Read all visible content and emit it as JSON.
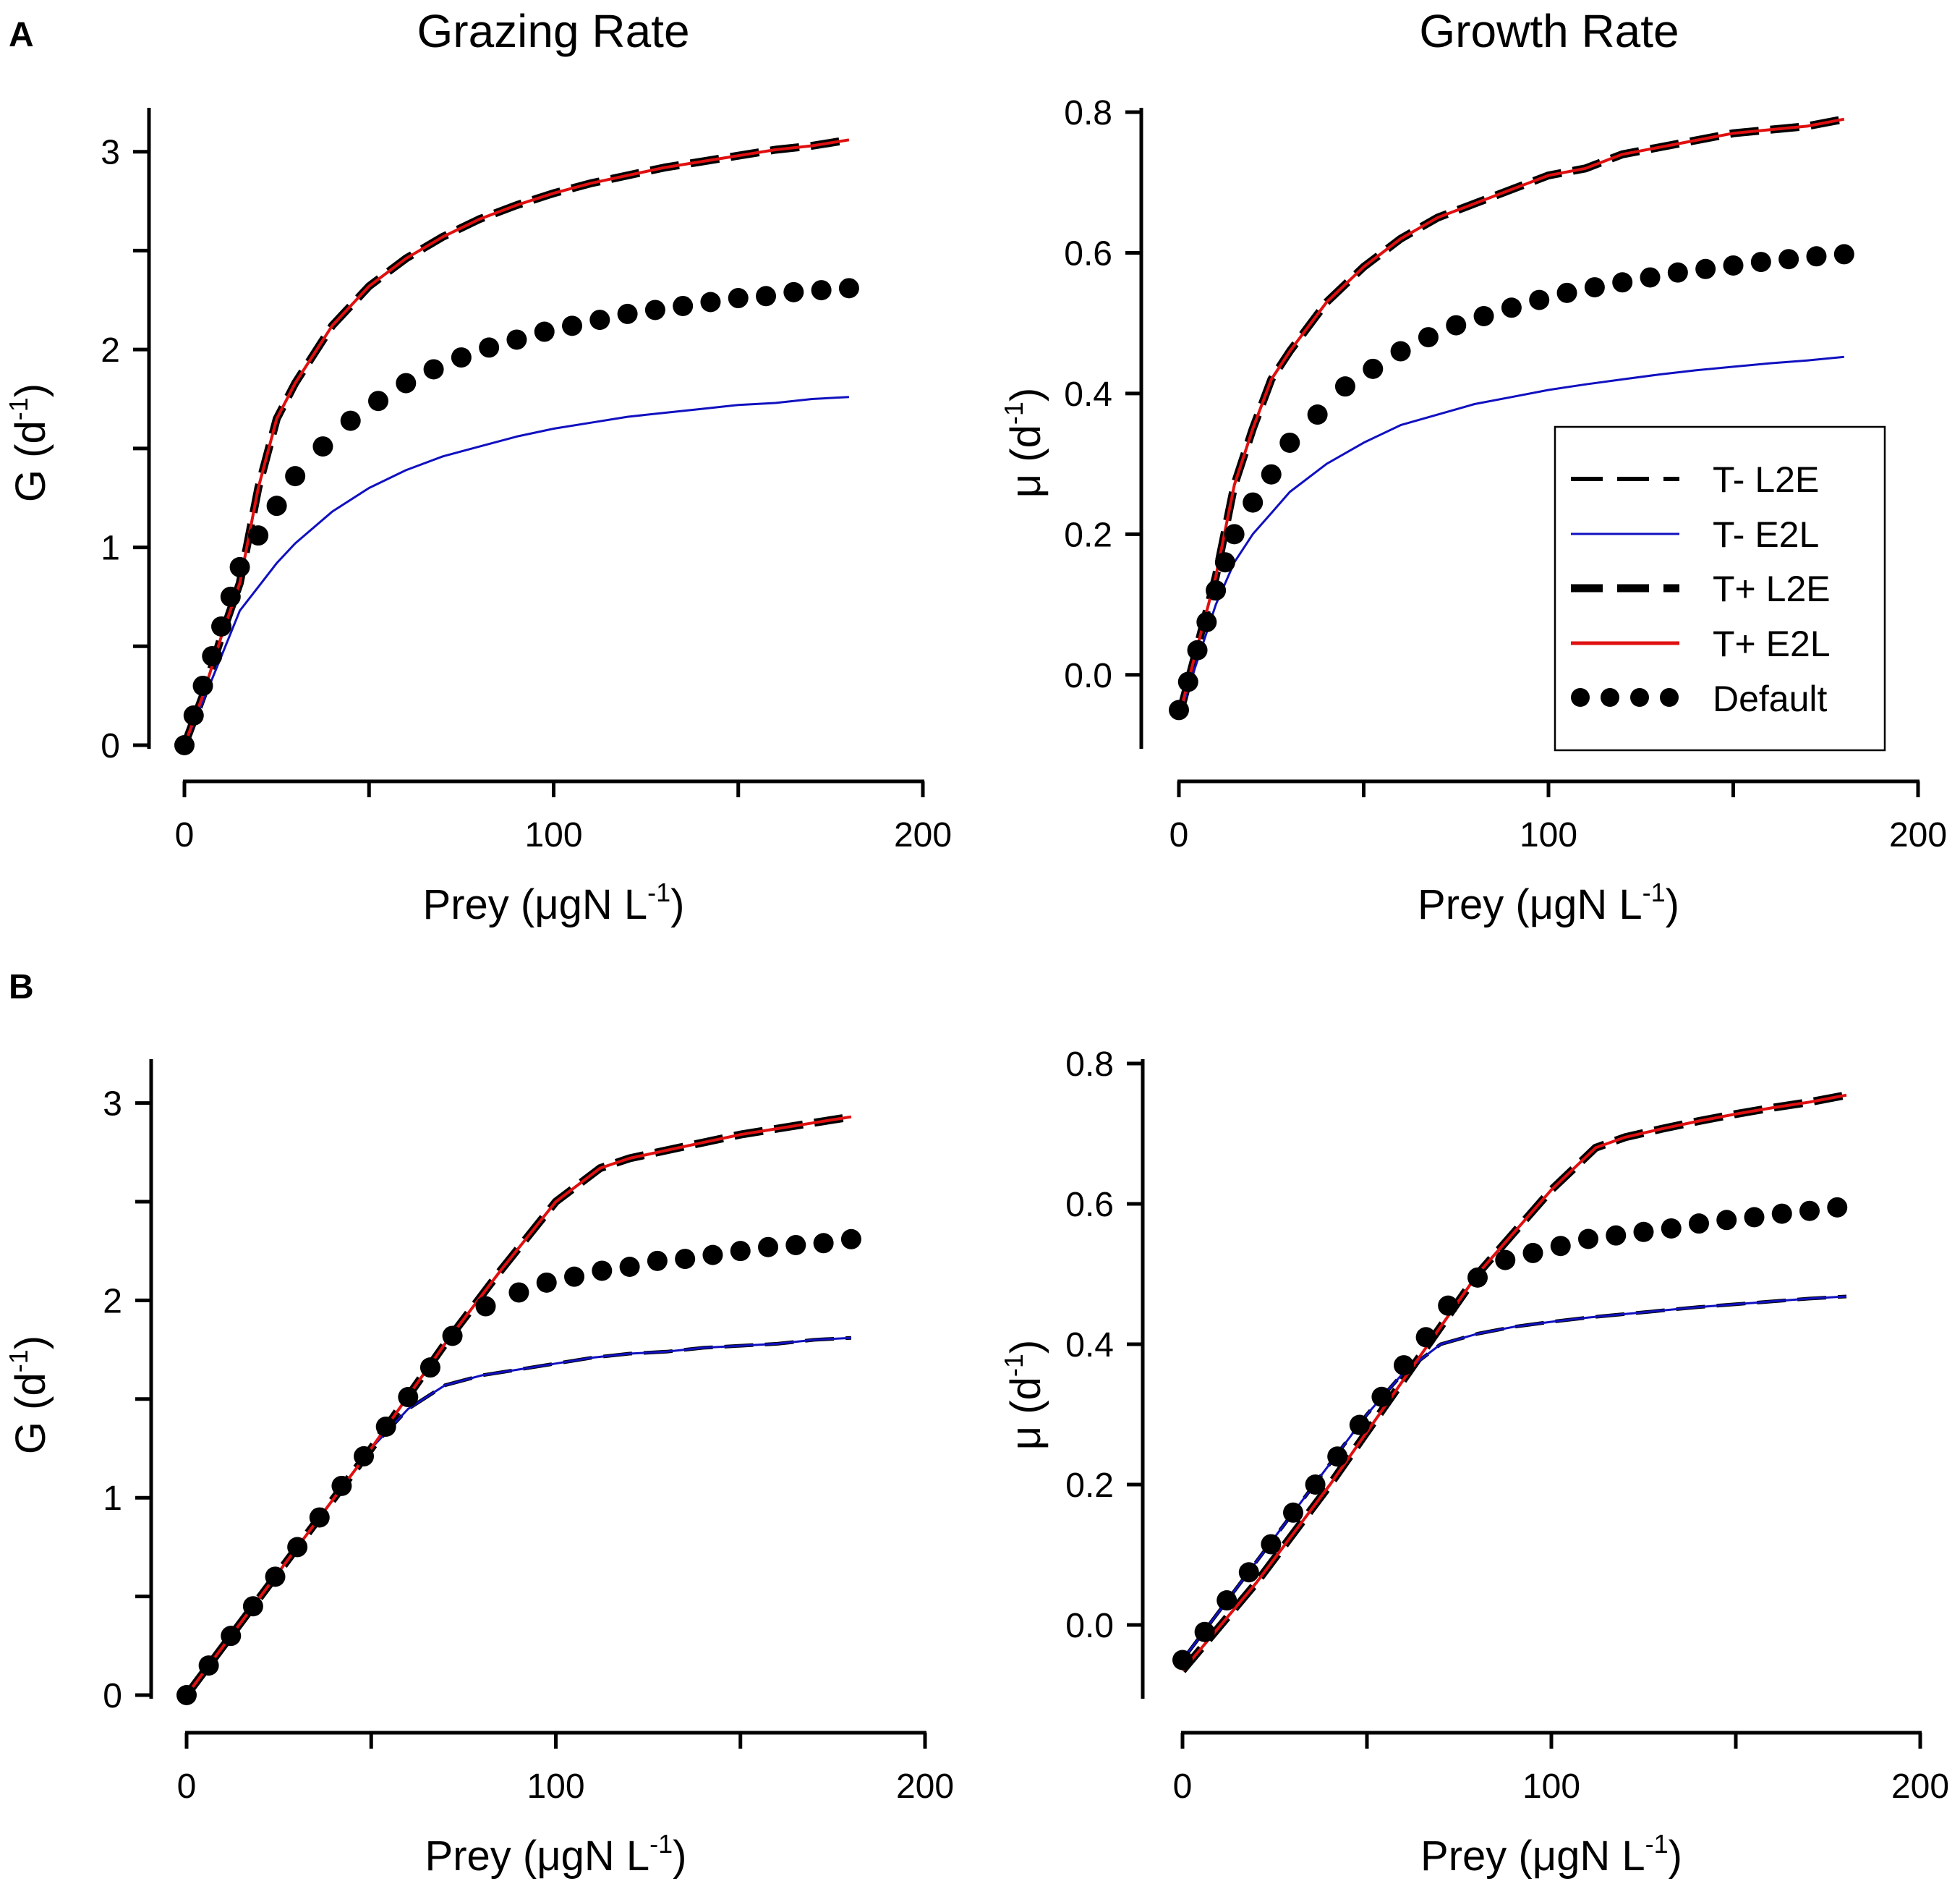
{
  "column_titles": [
    "Grazing Rate",
    "Growth Rate"
  ],
  "panel_labels": [
    "A",
    "B"
  ],
  "axis_text": {
    "xlabel_main": "Prey (",
    "xlabel_mu": "μ",
    "xlabel_unit": "gN L",
    "xlabel_sup": "-1",
    "xlabel_close": ")",
    "ylabel_G_main": "G (d",
    "ylabel_mu_main": "μ (d",
    "ylabel_sup": "-1",
    "ylabel_close": ")"
  },
  "legend": {
    "entries": [
      {
        "label": "T- L2E",
        "color": "#000000",
        "style": "dash-thin"
      },
      {
        "label": "T- E2L",
        "color": "#1010c0",
        "style": "solid-thin"
      },
      {
        "label": "T+ L2E",
        "color": "#000000",
        "style": "dash-thick"
      },
      {
        "label": "T+ E2L",
        "color": "#e01010",
        "style": "solid-red"
      },
      {
        "label": "Default",
        "color": "#000000",
        "style": "dots"
      }
    ]
  },
  "chart_data": [
    {
      "id": "A-grazing",
      "type": "line",
      "panel": "A",
      "title": "Grazing Rate",
      "xlabel": "Prey (μgN L-1)",
      "ylabel": "G (d-1)",
      "xlim": [
        0,
        200
      ],
      "ylim": [
        0,
        3.2
      ],
      "xticks": [
        0,
        50,
        100,
        150,
        200
      ],
      "xticklabels": [
        "0",
        "",
        "100",
        "",
        "200"
      ],
      "yticks": [
        0,
        0.5,
        1,
        1.5,
        2,
        2.5,
        3
      ],
      "yticklabels": [
        "0",
        "",
        "1",
        "",
        "2",
        "",
        "3"
      ],
      "series": [
        {
          "name": "T- L2E",
          "x": [
            0,
            5,
            10,
            15,
            20,
            25,
            30,
            40,
            50,
            60,
            70,
            80,
            90,
            100,
            110,
            120,
            130,
            140,
            150,
            160,
            170,
            180
          ],
          "y": [
            0,
            0.25,
            0.55,
            0.82,
            1.3,
            1.65,
            1.83,
            2.12,
            2.32,
            2.46,
            2.57,
            2.66,
            2.73,
            2.79,
            2.84,
            2.88,
            2.92,
            2.95,
            2.98,
            3.01,
            3.03,
            3.06
          ]
        },
        {
          "name": "T- E2L",
          "x": [
            0,
            5,
            10,
            15,
            20,
            25,
            30,
            40,
            50,
            60,
            70,
            80,
            90,
            100,
            110,
            120,
            130,
            140,
            150,
            160,
            170,
            180
          ],
          "y": [
            0,
            0.22,
            0.45,
            0.68,
            0.8,
            0.92,
            1.02,
            1.18,
            1.3,
            1.39,
            1.46,
            1.51,
            1.56,
            1.6,
            1.63,
            1.66,
            1.68,
            1.7,
            1.72,
            1.73,
            1.75,
            1.76
          ]
        },
        {
          "name": "T+ L2E",
          "x": [
            0,
            5,
            10,
            15,
            20,
            25,
            30,
            40,
            50,
            60,
            70,
            80,
            90,
            100,
            110,
            120,
            130,
            140,
            150,
            160,
            170,
            180
          ],
          "y": [
            0,
            0.25,
            0.55,
            0.82,
            1.3,
            1.65,
            1.83,
            2.12,
            2.32,
            2.46,
            2.57,
            2.66,
            2.73,
            2.79,
            2.84,
            2.88,
            2.92,
            2.95,
            2.98,
            3.01,
            3.03,
            3.06
          ]
        },
        {
          "name": "T+ E2L",
          "x": [
            0,
            5,
            10,
            15,
            20,
            25,
            30,
            40,
            50,
            60,
            70,
            80,
            90,
            100,
            110,
            120,
            130,
            140,
            150,
            160,
            170,
            180
          ],
          "y": [
            0,
            0.25,
            0.55,
            0.82,
            1.3,
            1.65,
            1.83,
            2.12,
            2.32,
            2.46,
            2.57,
            2.66,
            2.73,
            2.79,
            2.84,
            2.88,
            2.92,
            2.95,
            2.98,
            3.01,
            3.03,
            3.06
          ]
        },
        {
          "name": "Default",
          "x": [
            0,
            2.5,
            5,
            7.5,
            10,
            12.5,
            15,
            20,
            25,
            30,
            37.5,
            45,
            52.5,
            60,
            67.5,
            75,
            82.5,
            90,
            97.5,
            105,
            112.5,
            120,
            127.5,
            135,
            142.5,
            150,
            157.5,
            165,
            172.5,
            180
          ],
          "y": [
            0,
            0.15,
            0.3,
            0.45,
            0.6,
            0.75,
            0.9,
            1.06,
            1.21,
            1.36,
            1.51,
            1.64,
            1.74,
            1.83,
            1.9,
            1.96,
            2.01,
            2.05,
            2.09,
            2.12,
            2.15,
            2.18,
            2.2,
            2.22,
            2.24,
            2.26,
            2.27,
            2.29,
            2.3,
            2.31
          ]
        }
      ]
    },
    {
      "id": "A-growth",
      "type": "line",
      "panel": "A",
      "title": "Growth Rate",
      "xlabel": "Prey (μgN L-1)",
      "ylabel": "μ (d-1)",
      "xlim": [
        0,
        200
      ],
      "ylim": [
        -0.1,
        0.8
      ],
      "xticks": [
        0,
        50,
        100,
        150,
        200
      ],
      "xticklabels": [
        "0",
        "",
        "100",
        "",
        "200"
      ],
      "yticks": [
        0,
        0.2,
        0.4,
        0.6,
        0.8
      ],
      "yticklabels": [
        "0.0",
        "0.2",
        "0.4",
        "0.6",
        "0.8"
      ],
      "series": [
        {
          "name": "T- L2E",
          "x": [
            0,
            5,
            10,
            15,
            20,
            25,
            30,
            40,
            50,
            60,
            70,
            80,
            90,
            100,
            110,
            120,
            130,
            140,
            150,
            160,
            170,
            180
          ],
          "y": [
            -0.06,
            0.04,
            0.14,
            0.27,
            0.35,
            0.42,
            0.46,
            0.53,
            0.58,
            0.62,
            0.65,
            0.67,
            0.69,
            0.71,
            0.72,
            0.74,
            0.75,
            0.76,
            0.77,
            0.775,
            0.78,
            0.79
          ]
        },
        {
          "name": "T- E2L",
          "x": [
            0,
            5,
            10,
            15,
            20,
            25,
            30,
            40,
            50,
            60,
            70,
            80,
            90,
            100,
            110,
            120,
            130,
            140,
            150,
            160,
            170,
            180
          ],
          "y": [
            -0.06,
            0.02,
            0.1,
            0.16,
            0.2,
            0.23,
            0.26,
            0.3,
            0.33,
            0.355,
            0.37,
            0.385,
            0.395,
            0.405,
            0.413,
            0.42,
            0.427,
            0.433,
            0.438,
            0.443,
            0.447,
            0.452
          ]
        },
        {
          "name": "T+ L2E",
          "x": [
            0,
            5,
            10,
            15,
            20,
            25,
            30,
            40,
            50,
            60,
            70,
            80,
            90,
            100,
            110,
            120,
            130,
            140,
            150,
            160,
            170,
            180
          ],
          "y": [
            -0.06,
            0.04,
            0.14,
            0.27,
            0.35,
            0.42,
            0.46,
            0.53,
            0.58,
            0.62,
            0.65,
            0.67,
            0.69,
            0.71,
            0.72,
            0.74,
            0.75,
            0.76,
            0.77,
            0.775,
            0.78,
            0.79
          ]
        },
        {
          "name": "T+ E2L",
          "x": [
            0,
            5,
            10,
            15,
            20,
            25,
            30,
            40,
            50,
            60,
            70,
            80,
            90,
            100,
            110,
            120,
            130,
            140,
            150,
            160,
            170,
            180
          ],
          "y": [
            -0.06,
            0.04,
            0.14,
            0.27,
            0.35,
            0.42,
            0.46,
            0.53,
            0.58,
            0.62,
            0.65,
            0.67,
            0.69,
            0.71,
            0.72,
            0.74,
            0.75,
            0.76,
            0.77,
            0.775,
            0.78,
            0.79
          ]
        },
        {
          "name": "Default",
          "x": [
            0,
            2.5,
            5,
            7.5,
            10,
            12.5,
            15,
            20,
            25,
            30,
            37.5,
            45,
            52.5,
            60,
            67.5,
            75,
            82.5,
            90,
            97.5,
            105,
            112.5,
            120,
            127.5,
            135,
            142.5,
            150,
            157.5,
            165,
            172.5,
            180
          ],
          "y": [
            -0.05,
            -0.01,
            0.035,
            0.075,
            0.12,
            0.16,
            0.2,
            0.245,
            0.285,
            0.33,
            0.37,
            0.41,
            0.435,
            0.46,
            0.48,
            0.497,
            0.51,
            0.522,
            0.533,
            0.543,
            0.551,
            0.558,
            0.565,
            0.572,
            0.577,
            0.582,
            0.587,
            0.591,
            0.595,
            0.598
          ]
        }
      ]
    },
    {
      "id": "B-grazing",
      "type": "line",
      "panel": "B",
      "title": "",
      "xlabel": "Prey (μgN L-1)",
      "ylabel": "G (d-1)",
      "xlim": [
        0,
        200
      ],
      "ylim": [
        0,
        3.2
      ],
      "xticks": [
        0,
        50,
        100,
        150,
        200
      ],
      "xticklabels": [
        "0",
        "",
        "100",
        "",
        "200"
      ],
      "yticks": [
        0,
        0.5,
        1,
        1.5,
        2,
        2.5,
        3
      ],
      "yticklabels": [
        "0",
        "",
        "1",
        "",
        "2",
        "",
        "3"
      ],
      "series": [
        {
          "name": "T- L2E",
          "x": [
            0,
            50,
            60,
            70,
            80,
            90,
            100,
            110,
            120,
            130,
            140,
            150,
            160,
            170,
            180
          ],
          "y": [
            0,
            1.25,
            1.45,
            1.57,
            1.62,
            1.65,
            1.68,
            1.71,
            1.73,
            1.74,
            1.76,
            1.77,
            1.78,
            1.8,
            1.81
          ]
        },
        {
          "name": "T- E2L",
          "x": [
            0,
            50,
            60,
            70,
            80,
            90,
            100,
            110,
            120,
            130,
            140,
            150,
            160,
            170,
            180
          ],
          "y": [
            0,
            1.25,
            1.45,
            1.57,
            1.62,
            1.65,
            1.68,
            1.71,
            1.73,
            1.74,
            1.76,
            1.77,
            1.78,
            1.8,
            1.81
          ]
        },
        {
          "name": "T+ L2E",
          "x": [
            0,
            50,
            70,
            85,
            100,
            112,
            120,
            130,
            140,
            150,
            160,
            170,
            180
          ],
          "y": [
            0,
            1.25,
            1.78,
            2.15,
            2.5,
            2.67,
            2.72,
            2.76,
            2.8,
            2.84,
            2.87,
            2.9,
            2.93
          ]
        },
        {
          "name": "T+ E2L",
          "x": [
            0,
            50,
            70,
            85,
            100,
            112,
            120,
            130,
            140,
            150,
            160,
            170,
            180
          ],
          "y": [
            0,
            1.25,
            1.78,
            2.15,
            2.5,
            2.67,
            2.72,
            2.76,
            2.8,
            2.84,
            2.87,
            2.9,
            2.93
          ]
        },
        {
          "name": "Default",
          "x": [
            0,
            6,
            12,
            18,
            24,
            30,
            36,
            42,
            48,
            54,
            60,
            66,
            72,
            81,
            90,
            97.5,
            105,
            112.5,
            120,
            127.5,
            135,
            142.5,
            150,
            157.5,
            165,
            172.5,
            180
          ],
          "y": [
            0,
            0.15,
            0.3,
            0.45,
            0.6,
            0.75,
            0.9,
            1.06,
            1.21,
            1.36,
            1.51,
            1.66,
            1.82,
            1.97,
            2.04,
            2.09,
            2.12,
            2.15,
            2.17,
            2.2,
            2.21,
            2.23,
            2.25,
            2.27,
            2.28,
            2.29,
            2.31
          ]
        }
      ]
    },
    {
      "id": "B-growth",
      "type": "line",
      "panel": "B",
      "title": "",
      "xlabel": "Prey (μgN L-1)",
      "ylabel": "μ (d-1)",
      "xlim": [
        0,
        200
      ],
      "ylim": [
        -0.1,
        0.8
      ],
      "xticks": [
        0,
        50,
        100,
        150,
        200
      ],
      "xticklabels": [
        "0",
        "",
        "100",
        "",
        "200"
      ],
      "yticks": [
        0,
        0.2,
        0.4,
        0.6,
        0.8
      ],
      "yticklabels": [
        "0.0",
        "0.2",
        "0.4",
        "0.6",
        "0.8"
      ],
      "series": [
        {
          "name": "T- L2E",
          "x": [
            0,
            50,
            60,
            70,
            80,
            90,
            100,
            110,
            120,
            130,
            140,
            150,
            160,
            170,
            180
          ],
          "y": [
            -0.05,
            0.3,
            0.36,
            0.4,
            0.415,
            0.425,
            0.432,
            0.438,
            0.443,
            0.448,
            0.453,
            0.457,
            0.461,
            0.465,
            0.468
          ]
        },
        {
          "name": "T- E2L",
          "x": [
            0,
            50,
            60,
            70,
            80,
            90,
            100,
            110,
            120,
            130,
            140,
            150,
            160,
            170,
            180
          ],
          "y": [
            -0.05,
            0.3,
            0.36,
            0.4,
            0.415,
            0.425,
            0.432,
            0.438,
            0.443,
            0.448,
            0.453,
            0.457,
            0.461,
            0.465,
            0.468
          ]
        },
        {
          "name": "T+ L2E",
          "x": [
            0,
            20,
            40,
            60,
            80,
            100,
            112,
            120,
            130,
            140,
            150,
            160,
            170,
            180
          ],
          "y": [
            -0.065,
            0.06,
            0.2,
            0.35,
            0.5,
            0.62,
            0.68,
            0.695,
            0.707,
            0.718,
            0.728,
            0.737,
            0.745,
            0.755
          ]
        },
        {
          "name": "T+ E2L",
          "x": [
            0,
            20,
            40,
            60,
            80,
            100,
            112,
            120,
            130,
            140,
            150,
            160,
            170,
            180
          ],
          "y": [
            -0.065,
            0.06,
            0.2,
            0.35,
            0.5,
            0.62,
            0.68,
            0.695,
            0.707,
            0.718,
            0.728,
            0.737,
            0.745,
            0.755
          ]
        },
        {
          "name": "Default",
          "x": [
            0,
            6,
            12,
            18,
            24,
            30,
            36,
            42,
            48,
            54,
            60,
            66,
            72,
            80,
            87.5,
            95,
            102.5,
            110,
            117.5,
            125,
            132.5,
            140,
            147.5,
            155,
            162.5,
            170,
            177.5
          ],
          "y": [
            -0.05,
            -0.01,
            0.035,
            0.075,
            0.115,
            0.16,
            0.2,
            0.24,
            0.285,
            0.325,
            0.37,
            0.41,
            0.455,
            0.495,
            0.52,
            0.53,
            0.54,
            0.55,
            0.555,
            0.56,
            0.565,
            0.572,
            0.577,
            0.581,
            0.586,
            0.59,
            0.595
          ]
        }
      ]
    }
  ]
}
